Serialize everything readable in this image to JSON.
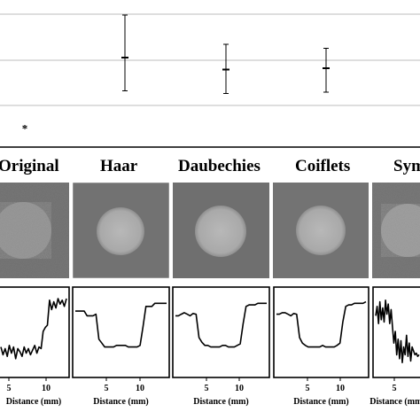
{
  "column_headers": [
    "Original",
    "Haar",
    "Daubechies",
    "Coiflets",
    "Symlets"
  ],
  "profile_xlabel": "Distance (mm)",
  "profile_ticks": [
    "5",
    "10"
  ],
  "top_chart": {
    "points": [
      {
        "label": "Original",
        "value": 0.05,
        "err_low": 0.05,
        "err_high": 0.05,
        "marker": "*"
      },
      {
        "label": "Haar",
        "value": 0.6,
        "err_low": 0.35,
        "err_high": 0.92
      },
      {
        "label": "Daubechies",
        "value": 0.51,
        "err_low": 0.33,
        "err_high": 0.7
      },
      {
        "label": "Coiflets",
        "value": 0.52,
        "err_low": 0.34,
        "err_high": 0.67
      }
    ],
    "grid": true
  },
  "profiles": [
    {
      "name": "Original",
      "y": [
        0.3,
        0.2,
        0.28,
        0.18,
        0.32,
        0.22,
        0.3,
        0.15,
        0.28,
        0.24,
        0.18,
        0.3,
        0.22,
        0.28,
        0.2,
        0.26,
        0.32,
        0.22,
        0.3,
        0.28,
        0.5,
        0.55,
        0.58,
        0.9,
        0.78,
        0.88,
        0.8,
        0.92,
        0.85,
        0.9,
        0.82,
        0.92
      ]
    },
    {
      "name": "Haar",
      "y": [
        0.76,
        0.76,
        0.76,
        0.76,
        0.7,
        0.7,
        0.7,
        0.72,
        0.4,
        0.35,
        0.3,
        0.3,
        0.3,
        0.3,
        0.32,
        0.32,
        0.32,
        0.32,
        0.3,
        0.3,
        0.3,
        0.3,
        0.32,
        0.56,
        0.82,
        0.82,
        0.82,
        0.86,
        0.86,
        0.86,
        0.86,
        0.86
      ]
    },
    {
      "name": "Daubechies",
      "y": [
        0.7,
        0.7,
        0.72,
        0.74,
        0.72,
        0.7,
        0.73,
        0.72,
        0.42,
        0.36,
        0.32,
        0.32,
        0.3,
        0.3,
        0.3,
        0.3,
        0.32,
        0.32,
        0.3,
        0.3,
        0.3,
        0.32,
        0.34,
        0.6,
        0.82,
        0.84,
        0.84,
        0.84,
        0.86,
        0.86,
        0.86,
        0.86
      ]
    },
    {
      "name": "Coiflets",
      "y": [
        0.72,
        0.72,
        0.74,
        0.74,
        0.72,
        0.7,
        0.73,
        0.72,
        0.42,
        0.35,
        0.32,
        0.3,
        0.3,
        0.3,
        0.3,
        0.3,
        0.32,
        0.3,
        0.3,
        0.3,
        0.3,
        0.32,
        0.35,
        0.62,
        0.82,
        0.84,
        0.84,
        0.86,
        0.86,
        0.86,
        0.86,
        0.88
      ]
    },
    {
      "name": "Symlets",
      "y": [
        0.7,
        0.82,
        0.6,
        0.88,
        0.65,
        0.8,
        0.62,
        0.9,
        0.72,
        0.85,
        0.6,
        0.78,
        0.55,
        0.35,
        0.5,
        0.2,
        0.4,
        0.15,
        0.38,
        0.1,
        0.3,
        0.2,
        0.45,
        0.18,
        0.35,
        0.12,
        0.3,
        0.25,
        0.2,
        0.22,
        0.18,
        0.2
      ]
    }
  ]
}
